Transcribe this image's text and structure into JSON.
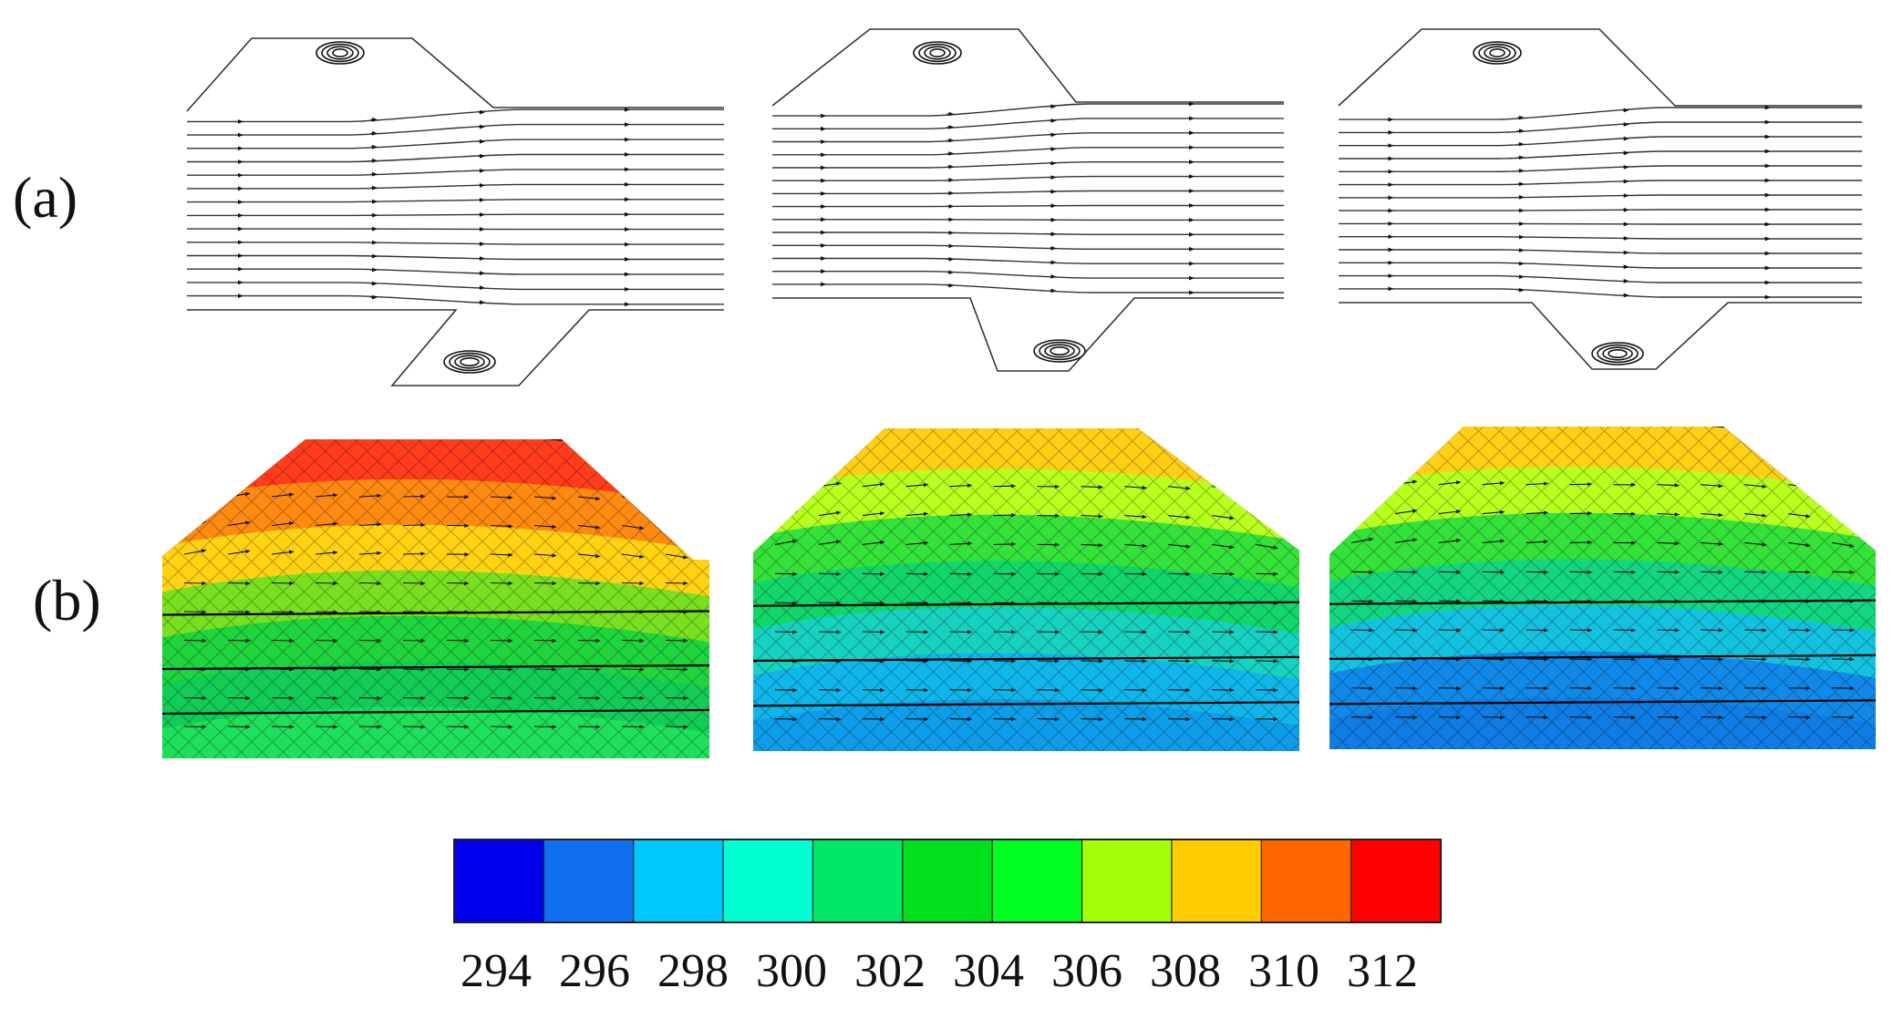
{
  "rows": [
    {
      "label": "(a)"
    },
    {
      "label": "(b)"
    }
  ],
  "colorbar": {
    "ticks": [
      "294",
      "296",
      "298",
      "300",
      "302",
      "304",
      "306",
      "308",
      "310",
      "312"
    ],
    "colors": [
      "#0000ee",
      "#1170f0",
      "#00c8ff",
      "#00ffd2",
      "#00e86a",
      "#00e01c",
      "#00ff21",
      "#a6ff08",
      "#ffcc00",
      "#ff6600",
      "#ff0000"
    ]
  },
  "panels_b": [
    {
      "stops": [
        "#ff3c1c",
        "#ff8a12",
        "#ffd314",
        "#78e020",
        "#1fd43c",
        "#12cc56",
        "#1ee05a"
      ]
    },
    {
      "stops": [
        "#ffcf18",
        "#b8ff20",
        "#34e23a",
        "#12d66a",
        "#18d2c0",
        "#10b6ea",
        "#0e9de8"
      ]
    },
    {
      "stops": [
        "#ffd018",
        "#b8ff20",
        "#34e23a",
        "#14d680",
        "#14c2e0",
        "#1189e8",
        "#0f7de4"
      ]
    }
  ]
}
